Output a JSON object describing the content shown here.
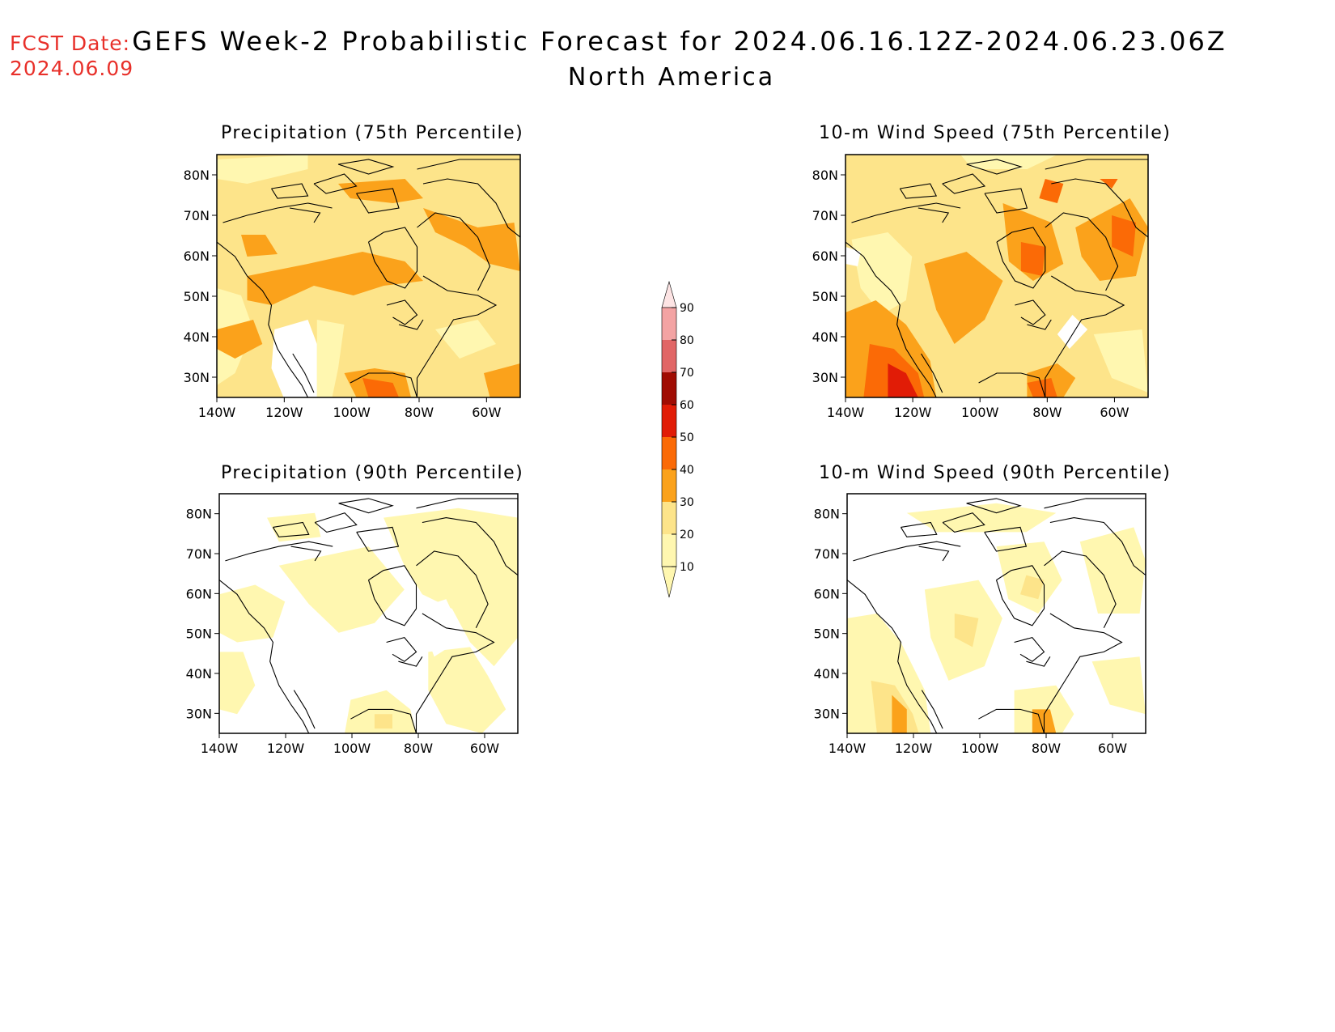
{
  "header": {
    "fcst_label": "FCST Date:",
    "fcst_date": "2024.06.09",
    "title": "GEFS Week-2 Probabilistic Forecast for 2024.06.16.12Z-2024.06.23.06Z",
    "subtitle": "North America"
  },
  "map_axes": {
    "lat_labels": [
      "80N",
      "70N",
      "60N",
      "50N",
      "40N",
      "30N"
    ],
    "lat_values": [
      80,
      70,
      60,
      50,
      40,
      30
    ],
    "lon_labels": [
      "140W",
      "120W",
      "100W",
      "80W",
      "60W"
    ],
    "lon_values": [
      -140,
      -120,
      -100,
      -80,
      -60
    ],
    "lat_range": [
      25,
      85
    ],
    "lon_range": [
      -140,
      -50
    ]
  },
  "panels": [
    {
      "id": "precip75",
      "title": "Precipitation (75th Percentile)"
    },
    {
      "id": "wind75",
      "title": "10-m Wind Speed (75th Percentile)"
    },
    {
      "id": "precip90",
      "title": "Precipitation (90th Percentile)"
    },
    {
      "id": "wind90",
      "title": "10-m Wind Speed (90th Percentile)"
    }
  ],
  "colorbar": {
    "levels": [
      "10",
      "20",
      "30",
      "40",
      "50",
      "60",
      "70",
      "80",
      "90"
    ],
    "colors": [
      "#ffffff",
      "#fff7b0",
      "#fde48a",
      "#fba21b",
      "#fb6a06",
      "#e11c06",
      "#a00c03",
      "#e16666",
      "#f3a3a3",
      "#fde4e4"
    ]
  }
}
